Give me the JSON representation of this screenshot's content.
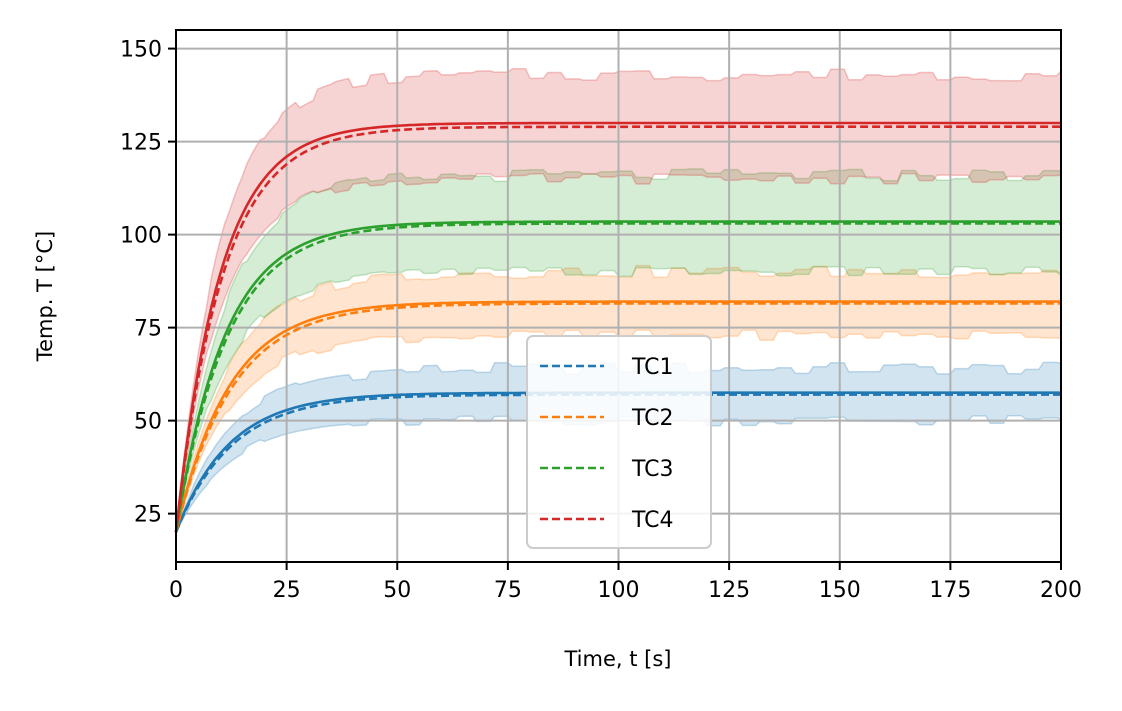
{
  "chart_data": {
    "type": "line",
    "title": "",
    "xlabel": "Time, t [s]",
    "ylabel": "Temp. T [°C]",
    "xlim": [
      0,
      200
    ],
    "ylim": [
      12,
      155
    ],
    "xticks": [
      0,
      25,
      50,
      75,
      100,
      125,
      150,
      175,
      200
    ],
    "yticks": [
      25,
      50,
      75,
      100,
      125,
      150
    ],
    "xtick_labels": [
      "0",
      "25",
      "50",
      "75",
      "100",
      "125",
      "150",
      "175",
      "200"
    ],
    "ytick_labels": [
      "25",
      "50",
      "75",
      "100",
      "125",
      "150"
    ],
    "grid": true,
    "legend_position": "lower center",
    "legend_style": "dashed",
    "series": [
      {
        "name": "TC1",
        "color": "#1f77b4",
        "start": 20,
        "steady_fit": 57.5,
        "steady_meas": 57.0,
        "tau": 12,
        "band_low": 50,
        "band_high": 64
      },
      {
        "name": "TC2",
        "color": "#ff7f0e",
        "start": 20,
        "steady_fit": 82.0,
        "steady_meas": 81.5,
        "tau": 12,
        "band_low": 73,
        "band_high": 90
      },
      {
        "name": "TC3",
        "color": "#2ca02c",
        "start": 20,
        "steady_fit": 103.5,
        "steady_meas": 103.0,
        "tau": 11,
        "band_low": 90,
        "band_high": 116
      },
      {
        "name": "TC4",
        "color": "#d62728",
        "start": 20,
        "steady_fit": 130.0,
        "steady_meas": 129.0,
        "tau": 10,
        "band_low": 115,
        "band_high": 143
      }
    ]
  }
}
